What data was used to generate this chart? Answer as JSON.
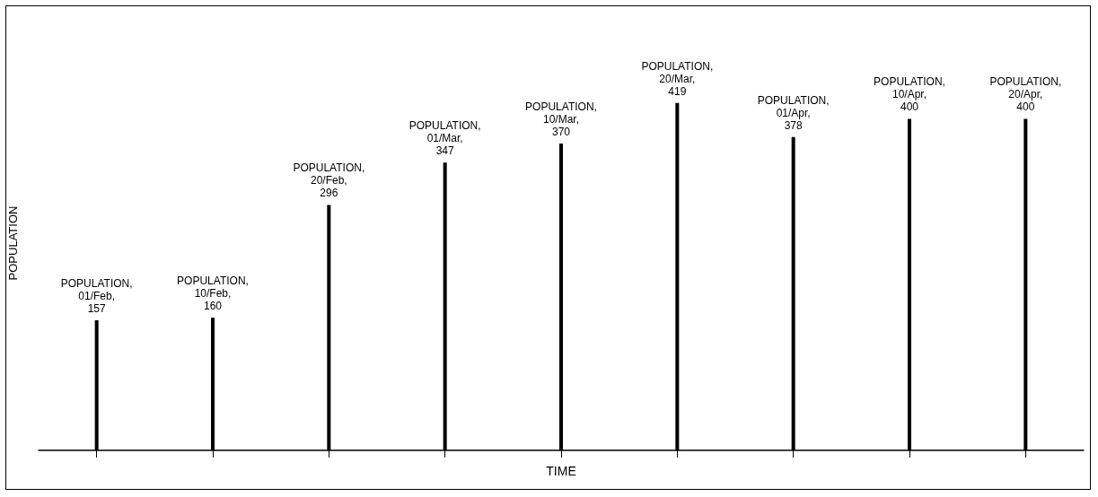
{
  "chart_data": {
    "type": "bar",
    "xlabel": "TIME",
    "ylabel": "POPULATION",
    "categories": [
      null,
      null,
      null,
      null,
      null,
      null,
      null,
      null,
      null
    ],
    "series": [
      {
        "color": "#000000",
        "values": [
          157,
          160,
          296,
          347,
          370,
          419,
          378,
          400,
          400
        ]
      }
    ],
    "data_labels": true,
    "annotations": [
      "POPULATION,\n01/Feb,",
      "POPULATION,\n10/Feb,",
      "POPULATION,\n20/Feb,",
      "POPULATION,\n01/Mar,",
      "POPULATION,\n10/Mar,",
      "POPULATION,\n20/Mar,",
      "POPULATION,\n01/Apr,",
      "POPULATION,\n10/Apr,",
      "POPULATION,\n20/Apr,"
    ],
    "tick_labels": false
  }
}
